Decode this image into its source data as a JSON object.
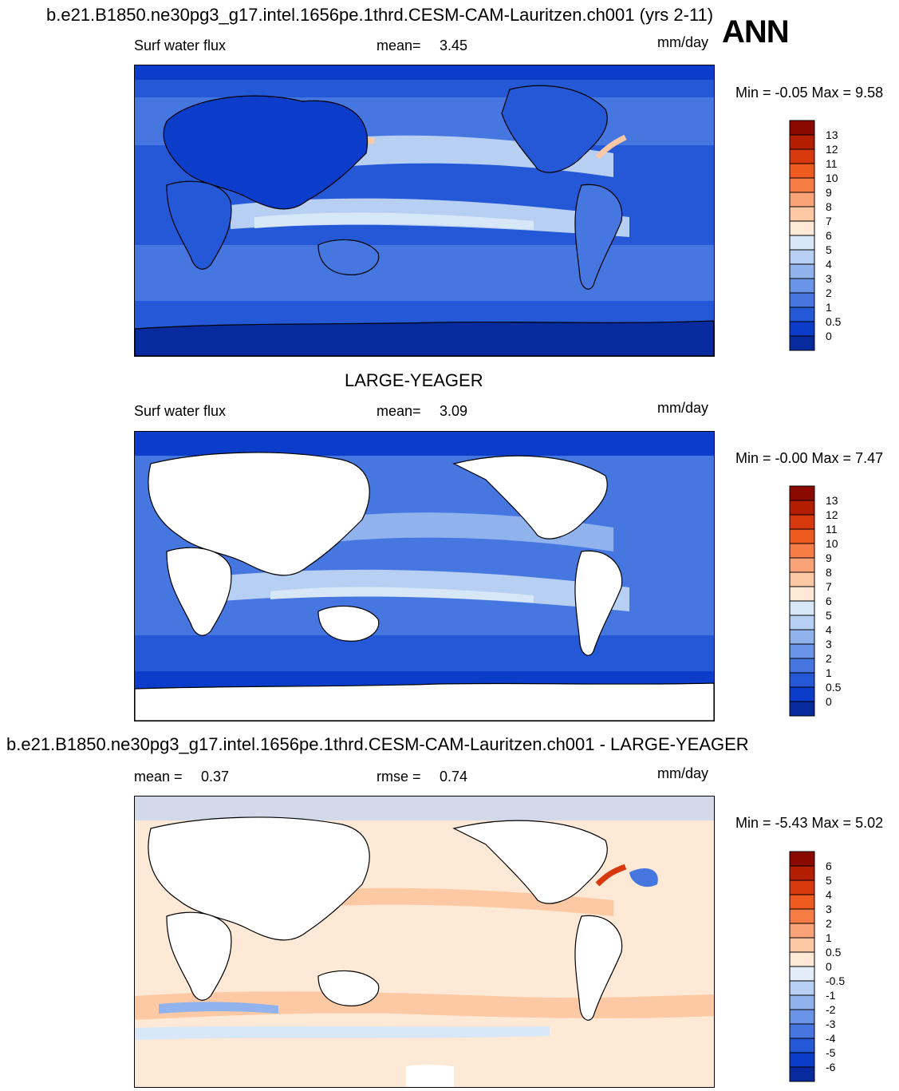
{
  "header": {
    "title": "b.e21.B1850.ne30pg3_g17.intel.1656pe.1thrd.CESM-CAM-Lauritzen.ch001 (yrs 2-11)",
    "season": "ANN"
  },
  "panels": [
    {
      "variable": "Surf water flux",
      "stat_label": "mean=",
      "stat_value": "3.45",
      "units": "mm/day",
      "minmax": "Min =  -0.05 Max =   9.58",
      "colorbar_levels": [
        "13",
        "12",
        "11",
        "10",
        "9",
        "8",
        "7",
        "6",
        "5",
        "4",
        "3",
        "2",
        "1",
        "0.5",
        "0"
      ],
      "colorbar_colors": [
        "#8b0a00",
        "#b31e00",
        "#d7380e",
        "#ef5a1f",
        "#f77d47",
        "#fba378",
        "#fdc9a4",
        "#fde9d6",
        "#d8e7f7",
        "#b6cff3",
        "#90b3ee",
        "#6a94e8",
        "#4676e0",
        "#2558d6",
        "#0b3dca",
        "#072a9e"
      ],
      "map_palette": {
        "land_dry": "#0b3dca",
        "ocean_low": "#2558d6",
        "ocean_mid": "#4676e0",
        "ocean_high": "#90b3ee",
        "ocean_peak": "#d8e7f7",
        "polar": "#072a9e",
        "hot": "#fdc9a4"
      }
    },
    {
      "center_title": "LARGE-YEAGER",
      "variable": "Surf water flux",
      "stat_label": "mean=",
      "stat_value": "3.09",
      "units": "mm/day",
      "minmax": "Min =  -0.00 Max =   7.47",
      "colorbar_levels": [
        "13",
        "12",
        "11",
        "10",
        "9",
        "8",
        "7",
        "6",
        "5",
        "4",
        "3",
        "2",
        "1",
        "0.5",
        "0"
      ],
      "colorbar_colors": [
        "#8b0a00",
        "#b31e00",
        "#d7380e",
        "#ef5a1f",
        "#f77d47",
        "#fba378",
        "#fdc9a4",
        "#fde9d6",
        "#d8e7f7",
        "#b6cff3",
        "#90b3ee",
        "#6a94e8",
        "#4676e0",
        "#2558d6",
        "#0b3dca",
        "#072a9e"
      ],
      "map_palette": {
        "land": "#ffffff",
        "ocean_low": "#2558d6",
        "ocean_mid": "#4676e0",
        "ocean_high": "#90b3ee",
        "ocean_peak": "#d8e7f7",
        "polar": "#0b3dca"
      }
    },
    {
      "center_title": "b.e21.B1850.ne30pg3_g17.intel.1656pe.1thrd.CESM-CAM-Lauritzen.ch001 - LARGE-YEAGER",
      "stat_label": "mean =",
      "stat_value": "0.37",
      "stat2_label": "rmse =",
      "stat2_value": "0.74",
      "units": "mm/day",
      "minmax": "Min =  -5.43 Max =   5.02",
      "colorbar_levels": [
        "6",
        "5",
        "4",
        "3",
        "2",
        "1",
        "0.5",
        "0",
        "-0.5",
        "-1",
        "-2",
        "-3",
        "-4",
        "-5",
        "-6"
      ],
      "colorbar_colors": [
        "#8b0a00",
        "#b31e00",
        "#d7380e",
        "#ef5a1f",
        "#f77d47",
        "#fba378",
        "#fdc9a4",
        "#fde9d6",
        "#e2edf9",
        "#b6cff3",
        "#90b3ee",
        "#6a94e8",
        "#4676e0",
        "#2558d6",
        "#0b3dca",
        "#072a9e"
      ],
      "map_palette": {
        "land": "#ffffff",
        "ocean_base": "#fde9d6",
        "warm": "#fdc9a4",
        "warmer": "#f77d47",
        "hot": "#d7380e",
        "cool": "#d8e7f7",
        "cooler": "#90b3ee",
        "cold": "#4676e0"
      }
    }
  ]
}
